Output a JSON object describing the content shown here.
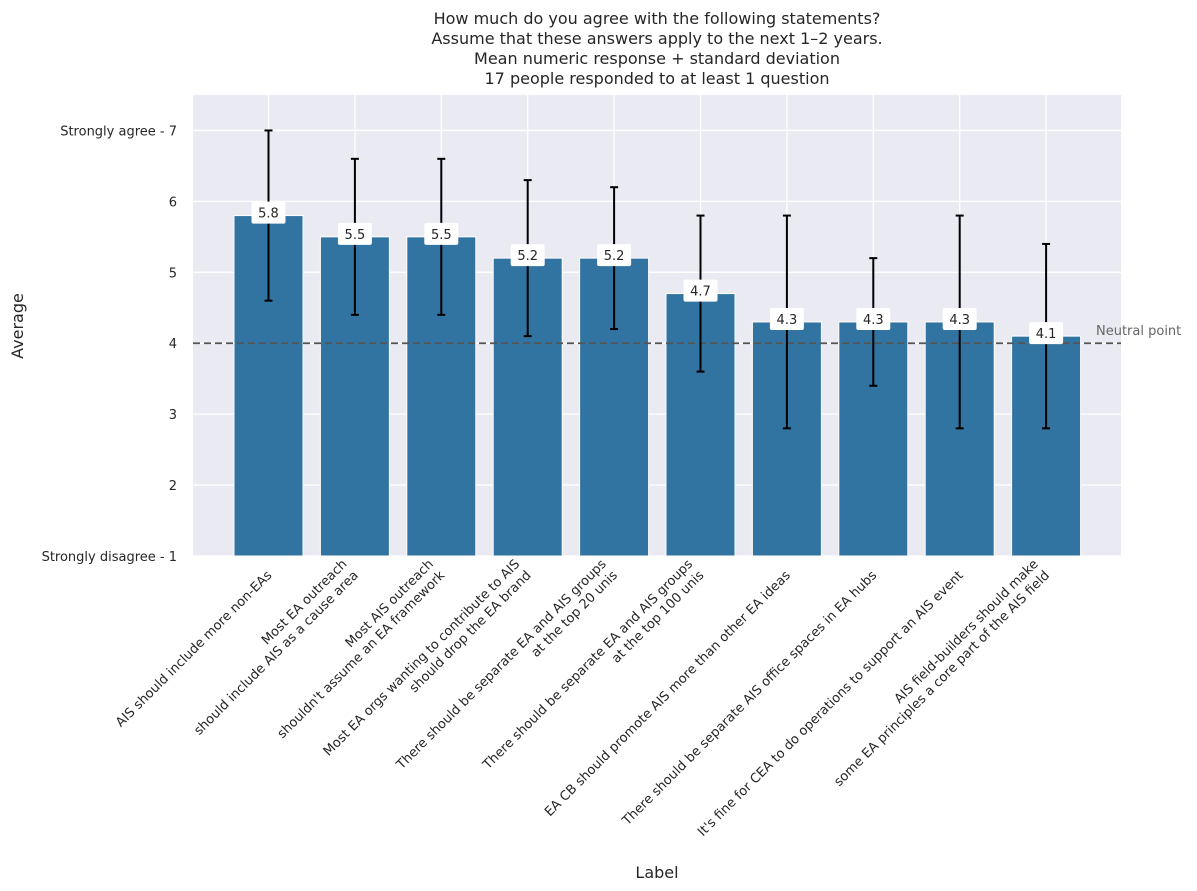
{
  "chart_data": {
    "type": "bar",
    "title": [
      "How much do you agree with the following statements?",
      "Assume that these answers apply to the next 1–2 years.",
      "Mean numeric response + standard deviation",
      "17 people responded to at least 1 question"
    ],
    "xlabel": "Label",
    "ylabel": "Average",
    "ylim": [
      1,
      7.5
    ],
    "yticks": [
      {
        "value": 7,
        "label": "Strongly agree - 7"
      },
      {
        "value": 6,
        "label": "6"
      },
      {
        "value": 5,
        "label": "5"
      },
      {
        "value": 4,
        "label": "4"
      },
      {
        "value": 3,
        "label": "3"
      },
      {
        "value": 2,
        "label": "2"
      },
      {
        "value": 1,
        "label": "Strongly disagree - 1"
      }
    ],
    "categories": [
      [
        "AIS should include more non-EAs"
      ],
      [
        "Most EA outreach",
        "should include AIS as a cause area"
      ],
      [
        "Most AIS outreach",
        "shouldn't assume an EA framework"
      ],
      [
        "Most EA orgs wanting to contribute to AIS",
        "should drop the EA brand"
      ],
      [
        "There should be separate EA and AIS groups",
        "at the top 20 unis"
      ],
      [
        "There should be separate EA and AIS groups",
        "at the top 100 unis"
      ],
      [
        "EA CB should promote AIS more than other EA ideas"
      ],
      [
        "There should be separate AIS office spaces in EA hubs"
      ],
      [
        "It's fine for CEA to do operations to support an AIS event"
      ],
      [
        "AIS field-builders should make",
        "some EA principles a core part of the AIS field"
      ]
    ],
    "values": [
      5.8,
      5.5,
      5.5,
      5.2,
      5.2,
      4.7,
      4.3,
      4.3,
      4.3,
      4.1
    ],
    "value_labels": [
      "5.8",
      "5.5",
      "5.5",
      "5.2",
      "5.2",
      "4.7",
      "4.3",
      "4.3",
      "4.3",
      "4.1"
    ],
    "std_dev": [
      1.2,
      1.1,
      1.1,
      1.1,
      1.0,
      1.1,
      1.5,
      0.9,
      1.5,
      1.3
    ],
    "reference_line": {
      "value": 4,
      "label": "Neutral point"
    },
    "colors": {
      "bar": "#3274a1",
      "plot_bg": "#eaeaf2",
      "grid": "#ffffff",
      "error_bar": "#000000",
      "reference_line": "#555555"
    },
    "grid": true
  }
}
